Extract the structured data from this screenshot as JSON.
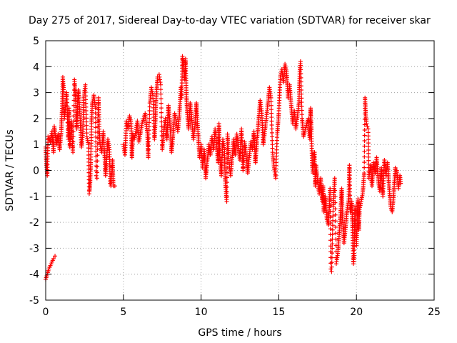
{
  "chart_data": {
    "type": "scatter",
    "title": "Day 275 of 2017, Sidereal Day-to-day VTEC variation (SDTVAR) for receiver skar",
    "xlabel": "GPS time / hours",
    "ylabel": "SDTVAR / TECUs",
    "xlim": [
      0,
      25
    ],
    "ylim": [
      -5,
      5
    ],
    "xticks": [
      "0",
      "5",
      "10",
      "15",
      "20",
      "25"
    ],
    "yticks": [
      "5",
      "4",
      "3",
      "2",
      "1",
      "0",
      "-1",
      "-2",
      "-3",
      "-4",
      "-5"
    ],
    "grid": true,
    "marker": "plus",
    "color": "#ff0000",
    "series": [
      {
        "name": "SDTVAR",
        "points": [
          [
            0.0,
            -4.2
          ],
          [
            0.1,
            -4.0
          ],
          [
            0.2,
            -3.8
          ],
          [
            0.35,
            -3.6
          ],
          [
            0.5,
            -3.4
          ],
          [
            0.6,
            -3.3
          ],
          [
            0.0,
            0.9
          ],
          [
            0.05,
            0.2
          ],
          [
            0.1,
            -0.2
          ],
          [
            0.15,
            1.3
          ],
          [
            0.3,
            1.1
          ],
          [
            0.4,
            1.5
          ],
          [
            0.5,
            0.7
          ],
          [
            0.55,
            1.7
          ],
          [
            0.7,
            1.0
          ],
          [
            0.8,
            1.4
          ],
          [
            0.9,
            0.8
          ],
          [
            1.0,
            1.5
          ],
          [
            1.05,
            2.3
          ],
          [
            1.1,
            3.6
          ],
          [
            1.15,
            3.2
          ],
          [
            1.2,
            2.0
          ],
          [
            1.3,
            2.6
          ],
          [
            1.35,
            3.0
          ],
          [
            1.45,
            1.2
          ],
          [
            1.5,
            2.4
          ],
          [
            1.55,
            0.9
          ],
          [
            1.65,
            1.9
          ],
          [
            1.75,
            0.7
          ],
          [
            1.85,
            3.5
          ],
          [
            1.9,
            3.0
          ],
          [
            1.95,
            2.5
          ],
          [
            2.0,
            1.6
          ],
          [
            2.1,
            3.1
          ],
          [
            2.2,
            2.2
          ],
          [
            2.3,
            0.9
          ],
          [
            2.4,
            1.5
          ],
          [
            2.45,
            2.8
          ],
          [
            2.55,
            3.3
          ],
          [
            2.65,
            1.3
          ],
          [
            2.75,
            1.0
          ],
          [
            2.8,
            -0.9
          ],
          [
            2.85,
            -0.6
          ],
          [
            2.9,
            0.3
          ],
          [
            2.95,
            1.8
          ],
          [
            3.0,
            2.6
          ],
          [
            3.1,
            2.9
          ],
          [
            3.2,
            2.4
          ],
          [
            3.25,
            -0.2
          ],
          [
            3.3,
            -0.3
          ],
          [
            3.4,
            2.8
          ],
          [
            3.45,
            1.5
          ],
          [
            3.5,
            1.0
          ],
          [
            3.6,
            0.7
          ],
          [
            3.7,
            1.5
          ],
          [
            3.8,
            0.5
          ],
          [
            3.85,
            -0.2
          ],
          [
            3.9,
            0.2
          ],
          [
            4.0,
            1.2
          ],
          [
            4.1,
            0.8
          ],
          [
            4.15,
            -0.5
          ],
          [
            4.2,
            -0.6
          ],
          [
            4.3,
            0.4
          ],
          [
            4.35,
            -0.6
          ],
          [
            4.45,
            -0.6
          ],
          [
            5.0,
            1.0
          ],
          [
            5.1,
            0.6
          ],
          [
            5.2,
            1.9
          ],
          [
            5.3,
            1.6
          ],
          [
            5.4,
            2.1
          ],
          [
            5.5,
            1.8
          ],
          [
            5.55,
            0.5
          ],
          [
            5.6,
            1.4
          ],
          [
            5.7,
            1.2
          ],
          [
            5.8,
            1.5
          ],
          [
            5.9,
            1.9
          ],
          [
            6.0,
            1.1
          ],
          [
            6.2,
            1.8
          ],
          [
            6.4,
            2.2
          ],
          [
            6.55,
            1.4
          ],
          [
            6.6,
            0.5
          ],
          [
            6.7,
            2.6
          ],
          [
            6.8,
            3.2
          ],
          [
            6.9,
            2.9
          ],
          [
            7.0,
            1.2
          ],
          [
            7.05,
            1.8
          ],
          [
            7.1,
            2.7
          ],
          [
            7.2,
            3.6
          ],
          [
            7.3,
            3.7
          ],
          [
            7.35,
            3.5
          ],
          [
            7.4,
            3.3
          ],
          [
            7.5,
            0.8
          ],
          [
            7.6,
            1.5
          ],
          [
            7.7,
            2.0
          ],
          [
            7.8,
            1.2
          ],
          [
            7.9,
            2.5
          ],
          [
            8.0,
            1.8
          ],
          [
            8.1,
            0.7
          ],
          [
            8.2,
            1.4
          ],
          [
            8.3,
            2.2
          ],
          [
            8.4,
            1.9
          ],
          [
            8.5,
            1.5
          ],
          [
            8.6,
            2.1
          ],
          [
            8.7,
            3.2
          ],
          [
            8.75,
            2.8
          ],
          [
            8.8,
            4.4
          ],
          [
            8.85,
            4.1
          ],
          [
            8.9,
            3.8
          ],
          [
            8.95,
            3.5
          ],
          [
            9.0,
            4.3
          ],
          [
            9.05,
            3.0
          ],
          [
            9.1,
            2.3
          ],
          [
            9.2,
            1.6
          ],
          [
            9.3,
            2.6
          ],
          [
            9.4,
            2.0
          ],
          [
            9.5,
            1.2
          ],
          [
            9.6,
            1.7
          ],
          [
            9.7,
            2.6
          ],
          [
            9.8,
            1.5
          ],
          [
            9.9,
            0.5
          ],
          [
            10.0,
            1.0
          ],
          [
            10.1,
            0.1
          ],
          [
            10.2,
            0.8
          ],
          [
            10.3,
            -0.3
          ],
          [
            10.4,
            0.4
          ],
          [
            10.5,
            1.0
          ],
          [
            10.6,
            0.6
          ],
          [
            10.7,
            1.3
          ],
          [
            10.8,
            0.8
          ],
          [
            10.9,
            1.6
          ],
          [
            11.0,
            1.0
          ],
          [
            11.1,
            0.3
          ],
          [
            11.15,
            1.8
          ],
          [
            11.2,
            0.6
          ],
          [
            11.3,
            -0.2
          ],
          [
            11.4,
            1.2
          ],
          [
            11.5,
            0.8
          ],
          [
            11.55,
            -0.3
          ],
          [
            11.6,
            -0.8
          ],
          [
            11.65,
            -1.2
          ],
          [
            11.7,
            1.4
          ],
          [
            11.8,
            0.3
          ],
          [
            11.9,
            -0.2
          ],
          [
            12.0,
            0.5
          ],
          [
            12.1,
            1.2
          ],
          [
            12.2,
            0.6
          ],
          [
            12.3,
            1.4
          ],
          [
            12.4,
            1.0
          ],
          [
            12.5,
            0.4
          ],
          [
            12.6,
            1.6
          ],
          [
            12.7,
            0.0
          ],
          [
            12.8,
            1.1
          ],
          [
            12.9,
            0.6
          ],
          [
            13.0,
            -0.1
          ],
          [
            13.1,
            0.5
          ],
          [
            13.2,
            1.1
          ],
          [
            13.3,
            0.8
          ],
          [
            13.4,
            1.5
          ],
          [
            13.5,
            0.3
          ],
          [
            13.6,
            1.2
          ],
          [
            13.7,
            1.9
          ],
          [
            13.8,
            2.7
          ],
          [
            13.9,
            2.3
          ],
          [
            14.0,
            1.0
          ],
          [
            14.1,
            1.5
          ],
          [
            14.2,
            2.0
          ],
          [
            14.3,
            2.6
          ],
          [
            14.4,
            3.2
          ],
          [
            14.5,
            2.8
          ],
          [
            14.6,
            0.7
          ],
          [
            14.7,
            0.1
          ],
          [
            14.8,
            -0.3
          ],
          [
            14.9,
            1.4
          ],
          [
            15.0,
            2.2
          ],
          [
            15.1,
            3.6
          ],
          [
            15.2,
            3.9
          ],
          [
            15.3,
            3.4
          ],
          [
            15.4,
            4.1
          ],
          [
            15.5,
            3.8
          ],
          [
            15.6,
            2.8
          ],
          [
            15.7,
            3.3
          ],
          [
            15.8,
            2.5
          ],
          [
            15.9,
            1.8
          ],
          [
            16.0,
            2.3
          ],
          [
            16.1,
            1.6
          ],
          [
            16.2,
            2.1
          ],
          [
            16.3,
            2.6
          ],
          [
            16.35,
            3.8
          ],
          [
            16.4,
            4.2
          ],
          [
            16.5,
            2.0
          ],
          [
            16.6,
            1.3
          ],
          [
            16.8,
            1.8
          ],
          [
            16.9,
            2.0
          ],
          [
            17.0,
            1.2
          ],
          [
            17.05,
            2.4
          ],
          [
            17.1,
            1.5
          ],
          [
            17.15,
            0.2
          ],
          [
            17.2,
            -0.1
          ],
          [
            17.3,
            0.7
          ],
          [
            17.35,
            -0.6
          ],
          [
            17.4,
            0.2
          ],
          [
            17.5,
            -0.4
          ],
          [
            17.6,
            -0.9
          ],
          [
            17.7,
            -0.3
          ],
          [
            17.8,
            -1.2
          ],
          [
            17.85,
            -0.6
          ],
          [
            17.9,
            -1.6
          ],
          [
            18.0,
            -1.0
          ],
          [
            18.1,
            -1.9
          ],
          [
            18.2,
            -2.1
          ],
          [
            18.25,
            -1.5
          ],
          [
            18.3,
            -0.7
          ],
          [
            18.35,
            -3.8
          ],
          [
            18.4,
            -3.9
          ],
          [
            18.5,
            -1.4
          ],
          [
            18.6,
            -0.3
          ],
          [
            18.7,
            -3.6
          ],
          [
            18.8,
            -3.2
          ],
          [
            18.9,
            -2.4
          ],
          [
            19.0,
            -1.4
          ],
          [
            19.05,
            -0.7
          ],
          [
            19.1,
            -1.8
          ],
          [
            19.2,
            -2.8
          ],
          [
            19.3,
            -2.2
          ],
          [
            19.4,
            -1.5
          ],
          [
            19.5,
            -1.1
          ],
          [
            19.55,
            0.2
          ],
          [
            19.6,
            -1.6
          ],
          [
            19.7,
            -1.2
          ],
          [
            19.75,
            -2.2
          ],
          [
            19.8,
            -3.6
          ],
          [
            19.85,
            -3.2
          ],
          [
            19.9,
            -1.4
          ],
          [
            19.95,
            -2.5
          ],
          [
            20.0,
            -2.9
          ],
          [
            20.05,
            -1.8
          ],
          [
            20.1,
            -1.1
          ],
          [
            20.15,
            -2.3
          ],
          [
            20.2,
            -1.5
          ],
          [
            20.3,
            -1.2
          ],
          [
            20.4,
            -0.9
          ],
          [
            20.5,
            -0.1
          ],
          [
            20.55,
            2.8
          ],
          [
            20.6,
            2.1
          ],
          [
            20.65,
            1.8
          ],
          [
            20.7,
            1.7
          ],
          [
            20.75,
            1.6
          ],
          [
            20.8,
            -0.3
          ],
          [
            20.9,
            0.2
          ],
          [
            21.0,
            -0.6
          ],
          [
            21.1,
            0.3
          ],
          [
            21.2,
            -0.1
          ],
          [
            21.3,
            0.5
          ],
          [
            21.4,
            -0.4
          ],
          [
            21.5,
            -0.8
          ],
          [
            21.6,
            0.1
          ],
          [
            21.7,
            -1.0
          ],
          [
            21.8,
            0.4
          ],
          [
            21.9,
            -0.2
          ],
          [
            22.0,
            0.3
          ],
          [
            22.1,
            -0.6
          ],
          [
            22.2,
            -1.4
          ],
          [
            22.3,
            -1.6
          ],
          [
            22.4,
            -0.9
          ],
          [
            22.5,
            0.1
          ],
          [
            22.6,
            0.0
          ],
          [
            22.7,
            -0.7
          ],
          [
            22.8,
            -0.2
          ],
          [
            22.85,
            -0.5
          ]
        ]
      }
    ]
  }
}
